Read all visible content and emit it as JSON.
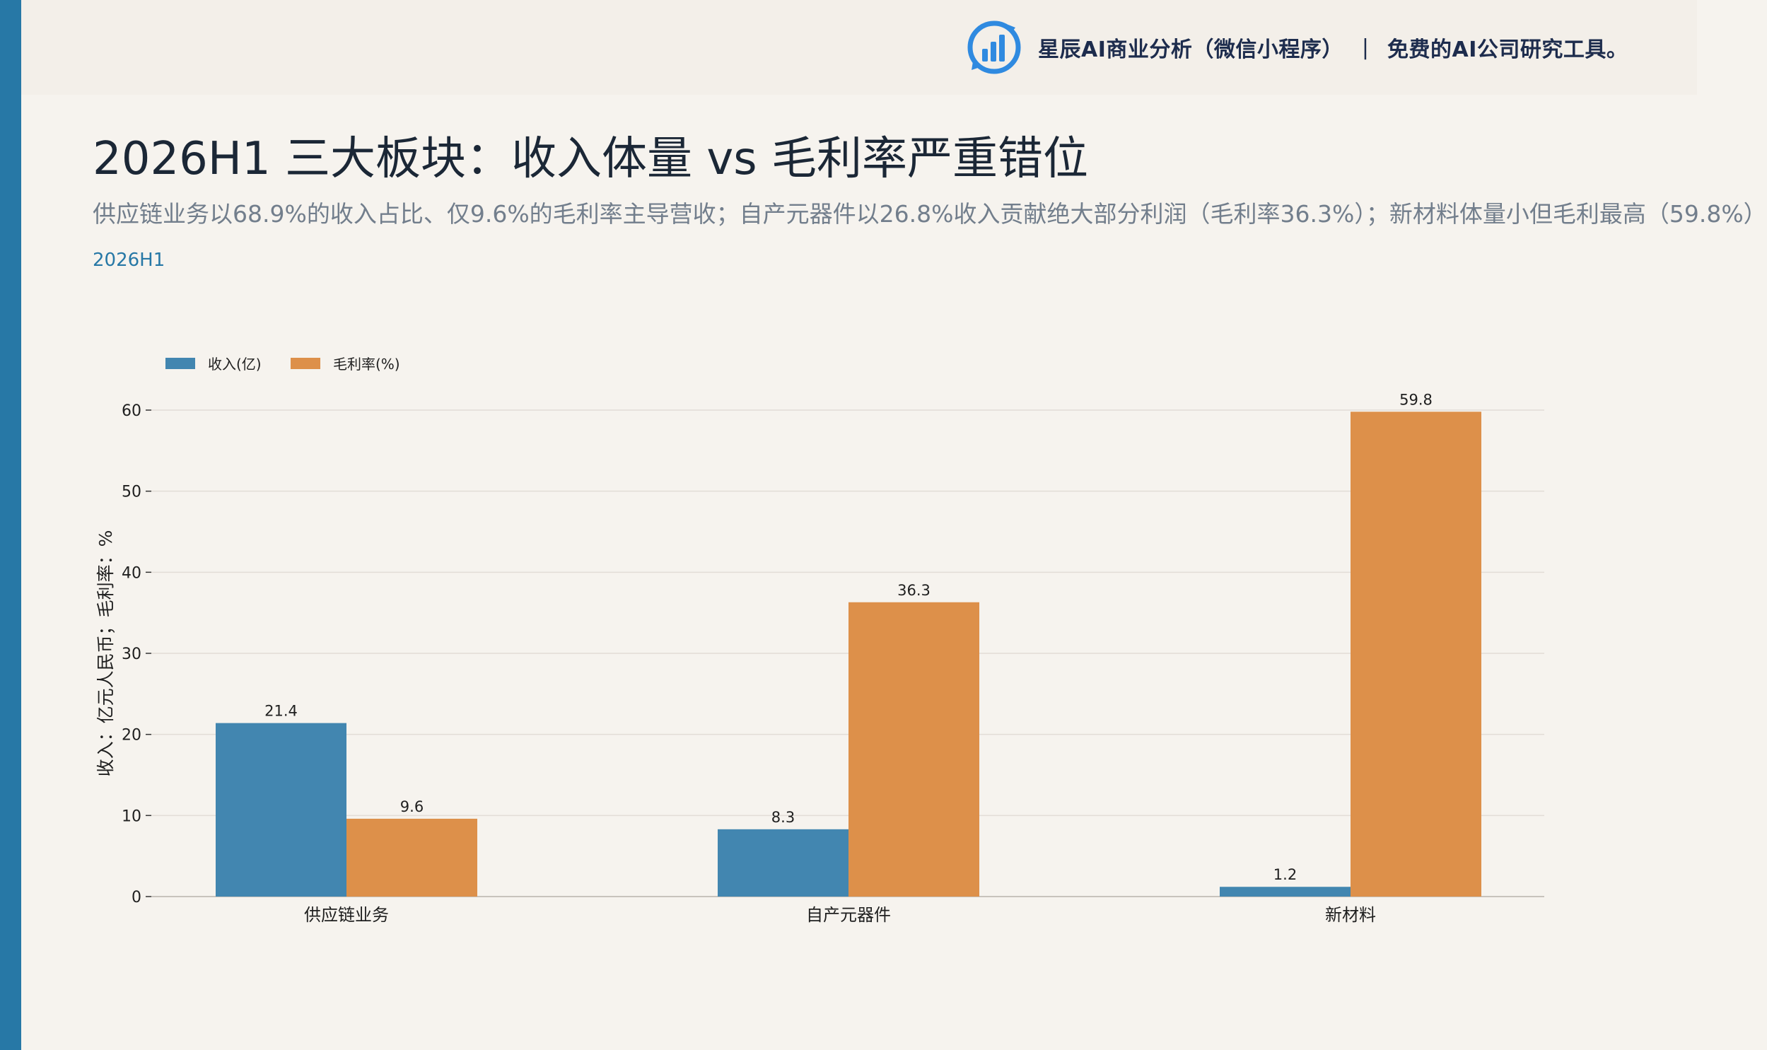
{
  "header": {
    "brand_name": "星辰AI商业分析（微信小程序）",
    "separator": "|",
    "tagline": "免费的AI公司研究工具。",
    "logo_icon": "bar-chart-logo-icon"
  },
  "title": "2026H1 三大板块：收入体量 vs 毛利率严重错位",
  "subtitle": "供应链业务以68.9%的收入占比、仅9.6%的毛利率主导营收；自产元器件以26.8%收入贡献绝大部分利润（毛利率36.3%）；新材料体量小但毛利最高（59.8%）",
  "period_label": "2026H1",
  "colors": {
    "accent": "#2778a6",
    "background": "#f6f3ee",
    "revenue": "#4286b0",
    "margin": "#dd904a"
  },
  "chart_data": {
    "type": "bar",
    "categories": [
      "供应链业务",
      "自产元器件",
      "新材料"
    ],
    "series": [
      {
        "name": "收入(亿)",
        "values": [
          21.4,
          8.3,
          1.2
        ],
        "color": "#4286b0"
      },
      {
        "name": "毛利率(%)",
        "values": [
          9.6,
          36.3,
          59.8
        ],
        "color": "#dd904a"
      }
    ],
    "ylabel": "收入：亿元人民币；毛利率：%",
    "xlabel": "",
    "ylim": [
      0,
      60
    ],
    "yticks": [
      0,
      10,
      20,
      30,
      40,
      50,
      60
    ],
    "grid": true,
    "legend_position": "top-left"
  }
}
